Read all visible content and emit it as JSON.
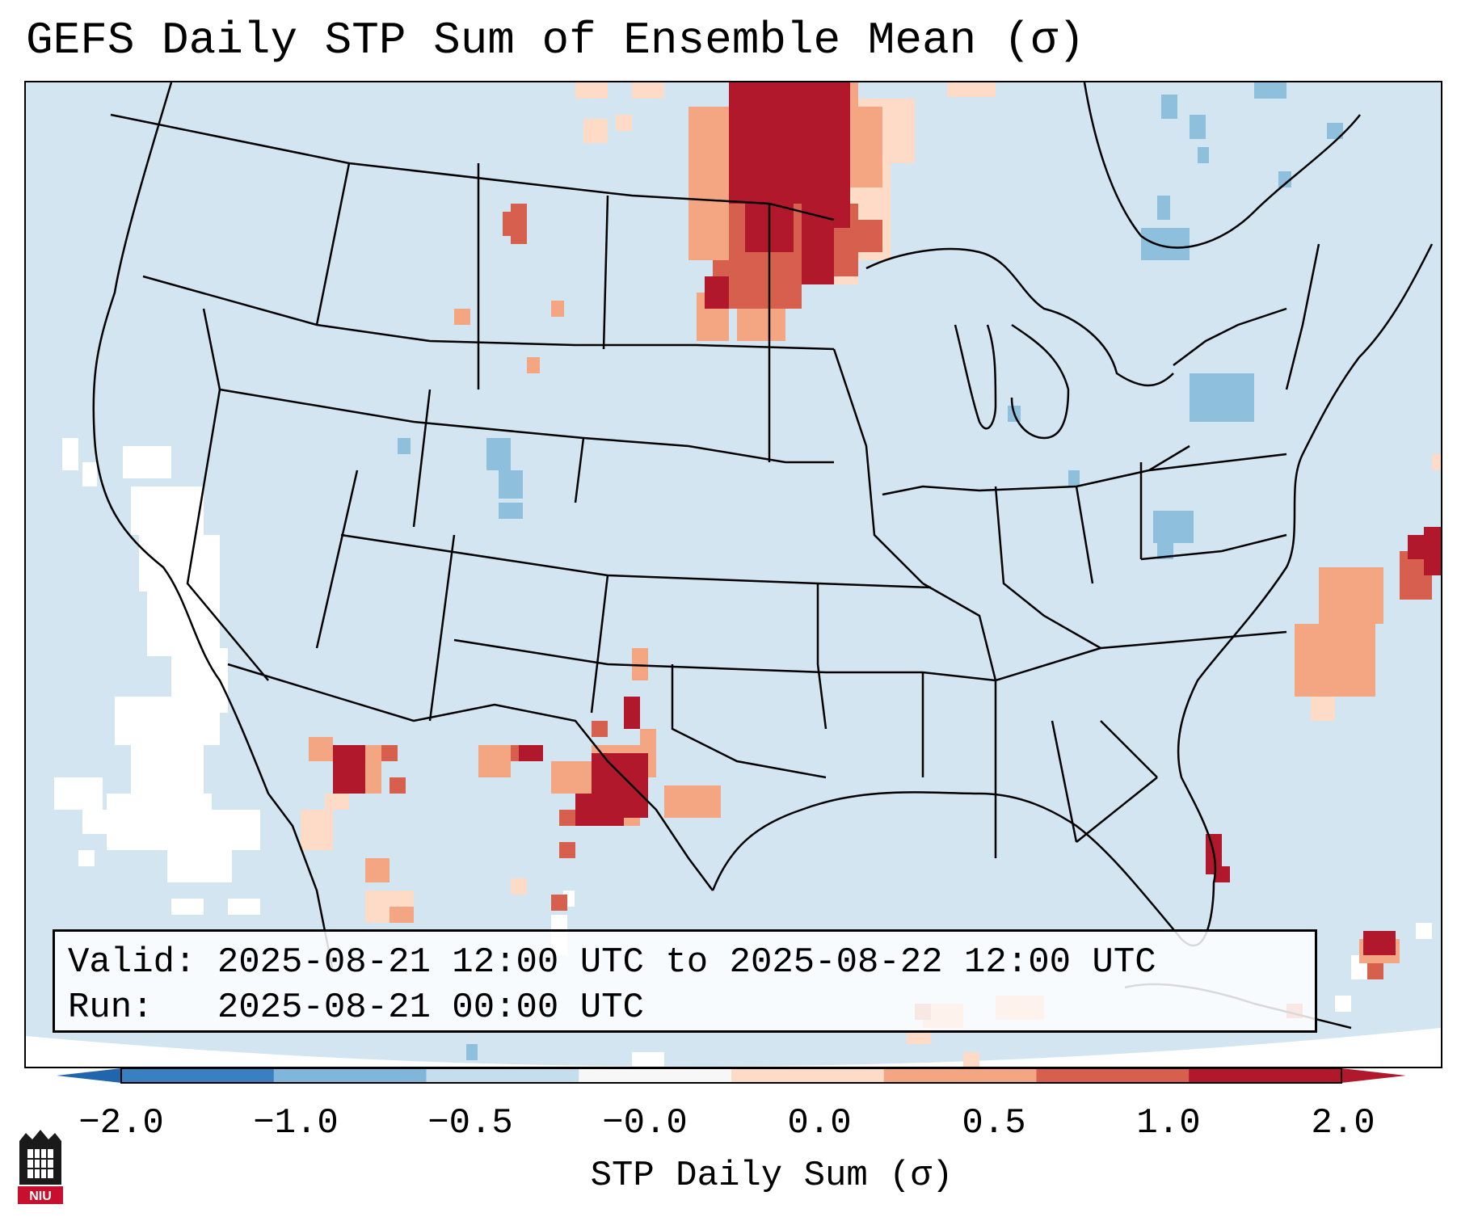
{
  "title": "GEFS Daily STP Sum of Ensemble Mean (σ)",
  "info": {
    "valid_label": "Valid:",
    "valid_value": "2025-08-21 12:00 UTC to 2025-08-22 12:00 UTC",
    "run_label": "Run:",
    "run_value": "2025-08-21 00:00 UTC"
  },
  "colorbar": {
    "label": "STP Daily Sum (σ)",
    "ticks": [
      "−2.0",
      "−1.0",
      "−0.5",
      "−0.0",
      "0.0",
      "0.5",
      "1.0",
      "2.0"
    ],
    "colors": [
      "#3a7fbf",
      "#7fb6d9",
      "#c6dded",
      "#f7f7f7",
      "#fddbc7",
      "#f4a582",
      "#d6604d",
      "#b2182b"
    ]
  },
  "logo_text": "NIU"
}
